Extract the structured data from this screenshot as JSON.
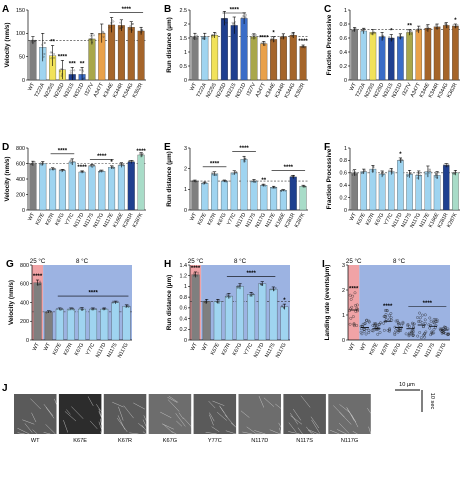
{
  "colors": {
    "wt_gray": "#7f7f7f",
    "tan": "#e8d9a0",
    "yellow": "#f1e25a",
    "blue": "#3a6cc7",
    "light_blue": "#9fd4f0",
    "olive": "#a9a74a",
    "orange": "#e9a14a",
    "brown": "#a5652a",
    "dark_blue": "#1f3f8f",
    "mint": "#a8dcc8",
    "shade_red": "#f0a3a6",
    "shade_blue": "#9cb3e2"
  },
  "kymographs": {
    "scale_x": "10 µm",
    "scale_y": "10 sec",
    "labels": [
      "WT",
      "K67E",
      "K67R",
      "K67G",
      "Y77C",
      "N117D",
      "N117S",
      "N117G"
    ]
  },
  "chart_data": [
    {
      "panel": "A",
      "type": "bar",
      "ylabel": "Velocity (nm/s)",
      "ylim": [
        0,
        150
      ],
      "yticks": [
        0,
        50,
        100,
        150
      ],
      "categories": [
        "WT",
        "T222A",
        "N225S",
        "N225D",
        "N321S",
        "N321D",
        "I327V",
        "A347T",
        "K344E",
        "K344R",
        "K344G",
        "K362R"
      ],
      "values": [
        85,
        70,
        52,
        22,
        12,
        12,
        88,
        100,
        118,
        117,
        113,
        105
      ],
      "errors": [
        8,
        30,
        22,
        20,
        15,
        15,
        12,
        20,
        16,
        12,
        12,
        8
      ],
      "colors": [
        "wt_gray",
        "light_blue",
        "yellow",
        "yellow",
        "dark_blue",
        "blue",
        "olive",
        "orange",
        "brown",
        "brown",
        "brown",
        "brown"
      ],
      "dashed_y": 85,
      "stars": [
        {
          "i": 2,
          "text": "**"
        },
        {
          "i": 3,
          "text": "****"
        },
        {
          "i": 4,
          "text": "***"
        },
        {
          "i": 5,
          "text": "**"
        }
      ],
      "bracket_stars": [
        {
          "from": 8,
          "to": 11,
          "text": "****"
        }
      ]
    },
    {
      "panel": "B",
      "type": "bar",
      "ylabel": "Run distance (µm)",
      "ylim": [
        0,
        2.5
      ],
      "yticks": [
        0,
        0.5,
        1.0,
        1.5,
        2.0,
        2.5
      ],
      "categories": [
        "WT",
        "T222A",
        "N225S",
        "N225D",
        "N321S",
        "N321D",
        "I327V",
        "A347T",
        "K344E",
        "K344R",
        "K344G",
        "K362R"
      ],
      "values": [
        1.55,
        1.55,
        1.6,
        2.2,
        1.95,
        2.2,
        1.55,
        1.3,
        1.45,
        1.55,
        1.6,
        1.2
      ],
      "errors": [
        0.12,
        0.12,
        0.1,
        0.25,
        0.3,
        0.2,
        0.1,
        0.08,
        0.1,
        0.1,
        0.1,
        0.05
      ],
      "colors": [
        "wt_gray",
        "light_blue",
        "yellow",
        "dark_blue",
        "dark_blue",
        "blue",
        "olive",
        "orange",
        "brown",
        "brown",
        "brown",
        "brown"
      ],
      "dashed_y": 1.55,
      "stars": [
        {
          "i": 7,
          "text": "****"
        },
        {
          "i": 8,
          "text": "*"
        },
        {
          "i": 11,
          "text": "****"
        }
      ],
      "bracket_stars": [
        {
          "from": 3,
          "to": 5,
          "text": "****"
        }
      ]
    },
    {
      "panel": "C",
      "type": "bar",
      "ylabel": "Fraction Processive",
      "ylim": [
        0,
        1.0
      ],
      "yticks": [
        0,
        0.2,
        0.4,
        0.6,
        0.8,
        1.0
      ],
      "categories": [
        "WT",
        "T222A",
        "N225S",
        "N225D",
        "N321S",
        "N321D",
        "I327V",
        "A347T",
        "K344E",
        "K344R",
        "K344G",
        "K362R"
      ],
      "values": [
        0.72,
        0.7,
        0.68,
        0.62,
        0.6,
        0.62,
        0.68,
        0.72,
        0.74,
        0.76,
        0.78,
        0.77
      ],
      "errors": [
        0.03,
        0.04,
        0.04,
        0.06,
        0.05,
        0.04,
        0.04,
        0.05,
        0.05,
        0.04,
        0.04,
        0.03
      ],
      "colors": [
        "wt_gray",
        "light_blue",
        "yellow",
        "blue",
        "dark_blue",
        "blue",
        "olive",
        "orange",
        "brown",
        "brown",
        "brown",
        "brown"
      ],
      "dashed_y": 0.72,
      "stars": [
        {
          "i": 4,
          "text": "*"
        },
        {
          "i": 6,
          "text": "**"
        },
        {
          "i": 11,
          "text": "*"
        }
      ],
      "bracket_stars": []
    },
    {
      "panel": "D",
      "type": "bar",
      "ylabel": "Velocity (nm/s)",
      "ylim": [
        0,
        800
      ],
      "yticks": [
        0,
        200,
        400,
        600,
        800
      ],
      "categories": [
        "WT",
        "K67E",
        "K67R",
        "K67G",
        "Y77C",
        "N117D",
        "N117S",
        "N117G",
        "N117E",
        "K166E",
        "K281R",
        "K287K"
      ],
      "values": [
        600,
        600,
        530,
        510,
        620,
        490,
        570,
        500,
        550,
        580,
        620,
        710
      ],
      "errors": [
        30,
        25,
        15,
        15,
        40,
        15,
        20,
        15,
        20,
        30,
        20,
        30
      ],
      "colors": [
        "wt_gray",
        "light_blue",
        "light_blue",
        "light_blue",
        "light_blue",
        "light_blue",
        "light_blue",
        "light_blue",
        "light_blue",
        "light_blue",
        "dark_blue",
        "mint"
      ],
      "dashed_y": 600,
      "stars": [
        {
          "i": 5,
          "text": "****"
        },
        {
          "i": 8,
          "text": "*"
        },
        {
          "i": 11,
          "text": "****"
        }
      ],
      "bracket_stars": [
        {
          "from": 2,
          "to": 4,
          "text": "****"
        },
        {
          "from": 6,
          "to": 8,
          "text": "****"
        }
      ]
    },
    {
      "panel": "E",
      "type": "bar",
      "ylabel": "Run distance (µm)",
      "ylim": [
        0,
        3
      ],
      "yticks": [
        0,
        1,
        2,
        3
      ],
      "categories": [
        "WT",
        "K67E",
        "K67R",
        "K67G",
        "Y77C",
        "N117D",
        "N117S",
        "N117G",
        "N117E",
        "K166E",
        "K281R",
        "K287K"
      ],
      "values": [
        1.4,
        1.3,
        1.75,
        1.4,
        1.8,
        2.45,
        1.4,
        1.2,
        1.1,
        0.95,
        1.6,
        1.15
      ],
      "errors": [
        0.05,
        0.05,
        0.1,
        0.05,
        0.1,
        0.15,
        0.08,
        0.05,
        0.05,
        0.04,
        0.08,
        0.05
      ],
      "colors": [
        "wt_gray",
        "light_blue",
        "light_blue",
        "light_blue",
        "light_blue",
        "light_blue",
        "light_blue",
        "light_blue",
        "light_blue",
        "light_blue",
        "dark_blue",
        "mint"
      ],
      "dashed_y": 1.4,
      "stars": [
        {
          "i": 7,
          "text": "**"
        }
      ],
      "bracket_stars": [
        {
          "from": 1,
          "to": 3,
          "text": "****"
        },
        {
          "from": 4,
          "to": 6,
          "text": "****"
        },
        {
          "from": 8,
          "to": 11,
          "text": "****"
        }
      ]
    },
    {
      "panel": "F",
      "type": "bar",
      "ylabel": "Fraction Processive",
      "ylim": [
        0,
        1.0
      ],
      "yticks": [
        0,
        0.2,
        0.4,
        0.6,
        0.8,
        1.0
      ],
      "categories": [
        "WT",
        "K67E",
        "K67R",
        "K67G",
        "Y77C",
        "N117D",
        "N117S",
        "N117G",
        "N117E",
        "K166E",
        "K281R",
        "K287K"
      ],
      "values": [
        0.6,
        0.62,
        0.66,
        0.58,
        0.62,
        0.8,
        0.58,
        0.56,
        0.62,
        0.56,
        0.72,
        0.6
      ],
      "errors": [
        0.05,
        0.04,
        0.06,
        0.05,
        0.05,
        0.04,
        0.06,
        0.07,
        0.09,
        0.06,
        0.03,
        0.04
      ],
      "colors": [
        "wt_gray",
        "light_blue",
        "light_blue",
        "light_blue",
        "light_blue",
        "light_blue",
        "light_blue",
        "light_blue",
        "light_blue",
        "light_blue",
        "dark_blue",
        "mint"
      ],
      "dashed_y": 0.6,
      "stars": [
        {
          "i": 5,
          "text": "*"
        }
      ],
      "bracket_stars": []
    },
    {
      "panel": "G",
      "type": "bar",
      "ylabel": "Velocity (nm/s)",
      "ylim": [
        0,
        800
      ],
      "yticks": [
        0,
        200,
        400,
        600,
        800
      ],
      "categories": [
        "WT",
        "WT",
        "K67E",
        "K67R",
        "K67G",
        "Y77C",
        "N117D",
        "N117S",
        "N117G"
      ],
      "values": [
        610,
        300,
        330,
        330,
        330,
        330,
        330,
        400,
        360
      ],
      "errors": [
        30,
        12,
        12,
        12,
        15,
        12,
        12,
        15,
        15
      ],
      "colors": [
        "wt_gray",
        "wt_gray",
        "light_blue",
        "light_blue",
        "light_blue",
        "light_blue",
        "light_blue",
        "light_blue",
        "light_blue"
      ],
      "dashed_y": 300,
      "temps": [
        "25 °C",
        "8 °C"
      ],
      "stars": [
        {
          "i": 0,
          "text": "****"
        }
      ],
      "bracket_stars": [
        {
          "from": 2,
          "to": 8,
          "text": "****"
        }
      ]
    },
    {
      "panel": "H",
      "type": "bar",
      "ylabel": "Run distance (µm)",
      "ylim": [
        0,
        1.4
      ],
      "yticks": [
        0,
        0.2,
        0.4,
        0.6,
        0.8,
        1.0,
        1.2,
        1.4
      ],
      "categories": [
        "WT",
        "WT",
        "K67E",
        "K67R",
        "K67G",
        "Y77C",
        "N117D",
        "N117S",
        "N117G"
      ],
      "values": [
        1.22,
        0.72,
        0.72,
        0.82,
        1.0,
        0.85,
        1.05,
        0.95,
        0.62
      ],
      "errors": [
        0.05,
        0.04,
        0.04,
        0.05,
        0.05,
        0.04,
        0.04,
        0.04,
        0.05
      ],
      "colors": [
        "wt_gray",
        "wt_gray",
        "light_blue",
        "light_blue",
        "light_blue",
        "light_blue",
        "light_blue",
        "light_blue",
        "light_blue"
      ],
      "dashed_y": 0.72,
      "temps": [
        "25 °C",
        "8 °C"
      ],
      "stars": [
        {
          "i": 0,
          "text": "****"
        },
        {
          "i": 8,
          "text": "*"
        }
      ],
      "bracket_stars": [
        {
          "from": 3,
          "to": 7,
          "text": "****"
        }
      ]
    },
    {
      "panel": "I",
      "type": "scatter",
      "ylabel": "Landing rate (events/µm)",
      "ylim": [
        0,
        3
      ],
      "yticks": [
        0,
        1,
        2,
        3
      ],
      "categories": [
        "WT",
        "WT",
        "K67E",
        "K67R",
        "K67G",
        "Y77C",
        "N117D",
        "N117S",
        "N117G"
      ],
      "means": [
        1.2,
        0.5,
        0.45,
        0.75,
        0.5,
        0.45,
        0.6,
        0.55,
        0.4
      ],
      "spread": [
        0.7,
        0.3,
        0.25,
        0.45,
        0.3,
        0.3,
        0.55,
        0.35,
        0.2
      ],
      "temps": [
        "25 °C",
        "8 °C"
      ],
      "stars": [
        {
          "i": 0,
          "text": "****"
        },
        {
          "i": 3,
          "text": "****"
        }
      ],
      "bracket_stars": [
        {
          "from": 5,
          "to": 8,
          "text": "****"
        }
      ]
    }
  ]
}
